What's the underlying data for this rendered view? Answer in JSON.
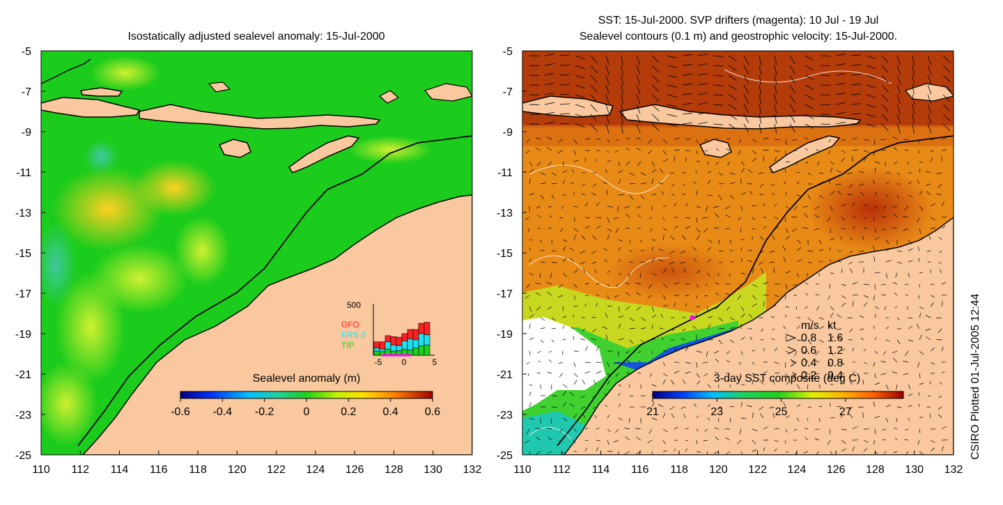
{
  "left_panel": {
    "title": "Isostatically adjusted sealevel anomaly: 15-Jul-2000",
    "colorbar": {
      "label": "Sealevel anomaly (m)",
      "ticks": [
        "-0.6",
        "-0.4",
        "-0.2",
        "0",
        "0.2",
        "0.4",
        "0.6"
      ],
      "range": [
        -0.6,
        0.6
      ]
    },
    "inset": {
      "ymax_label": "500",
      "xticks": [
        "-5",
        "0",
        "5"
      ],
      "legend": [
        "GFO",
        "ERS-2",
        "T/P"
      ],
      "legend_colors": [
        "#ff2020",
        "#20e0f0",
        "#20d020"
      ],
      "bars": [
        {
          "tp": 40,
          "ers": 30,
          "gfo": 60
        },
        {
          "tp": 35,
          "ers": 25,
          "gfo": 70
        },
        {
          "tp": 60,
          "ers": 70,
          "gfo": 60
        },
        {
          "tp": 40,
          "ers": 60,
          "gfo": 80
        },
        {
          "tp": 45,
          "ers": 50,
          "gfo": 80
        },
        {
          "tp": 60,
          "ers": 80,
          "gfo": 70
        },
        {
          "tp": 50,
          "ers": 110,
          "gfo": 90
        },
        {
          "tp": 70,
          "ers": 80,
          "gfo": 100
        },
        {
          "tp": 90,
          "ers": 120,
          "gfo": 100
        },
        {
          "tp": 100,
          "ers": 100,
          "gfo": 120
        }
      ]
    }
  },
  "right_panel": {
    "title_line1": "SST: 15-Jul-2000. SVP drifters (magenta): 10 Jul - 19 Jul",
    "title_line2": "Sealevel contours (0.1 m) and geostrophic velocity: 15-Jul-2000.",
    "colorbar": {
      "label": "3-day SST composite (deg C)",
      "ticks": [
        "21",
        "23",
        "25",
        "27"
      ],
      "range": [
        21,
        28.8
      ]
    },
    "velocity_legend": {
      "header_ms": "m/s",
      "header_kt": "kt",
      "rows": [
        {
          "ms": "0.8",
          "kt": "1.6"
        },
        {
          "ms": "0.6",
          "kt": "1.2"
        },
        {
          "ms": "0.4",
          "kt": "0.8"
        },
        {
          "ms": "0.2",
          "kt": "0.4"
        }
      ]
    }
  },
  "axes": {
    "x_ticks": [
      "110",
      "112",
      "114",
      "116",
      "118",
      "120",
      "122",
      "124",
      "126",
      "128",
      "130",
      "132"
    ],
    "y_ticks": [
      "-5",
      "-7",
      "-9",
      "-11",
      "-13",
      "-15",
      "-17",
      "-19",
      "-21",
      "-23",
      "-25"
    ],
    "lon_range": [
      110,
      132
    ],
    "lat_range": [
      -25,
      -5
    ]
  },
  "side_label": "CSIRO Plotted 01-Jul-2005 12:44",
  "colors": {
    "land": "#f9c89e",
    "ocean_green": "#1ccc1c",
    "sst_orange": "#e88a16"
  }
}
